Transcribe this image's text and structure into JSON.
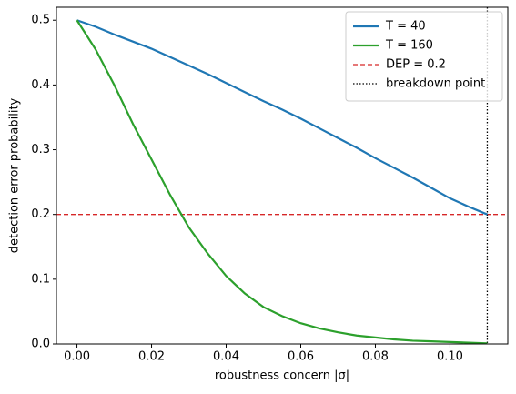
{
  "chart_data": {
    "type": "line",
    "xlabel": "robustness concern |σ|",
    "ylabel": "detection error probability",
    "x": [
      0,
      0.005,
      0.01,
      0.015,
      0.02,
      0.025,
      0.03,
      0.035,
      0.04,
      0.045,
      0.05,
      0.055,
      0.06,
      0.065,
      0.07,
      0.075,
      0.08,
      0.085,
      0.09,
      0.095,
      0.1,
      0.105,
      0.11
    ],
    "series": [
      {
        "name": "T = 40",
        "color": "#1f77b4",
        "values": [
          0.5,
          0.49,
          0.478,
          0.467,
          0.456,
          0.443,
          0.43,
          0.417,
          0.403,
          0.389,
          0.375,
          0.362,
          0.348,
          0.333,
          0.318,
          0.303,
          0.287,
          0.272,
          0.257,
          0.241,
          0.225,
          0.212,
          0.2
        ]
      },
      {
        "name": "T = 160",
        "color": "#2ca02c",
        "values": [
          0.5,
          0.455,
          0.4,
          0.34,
          0.285,
          0.23,
          0.18,
          0.14,
          0.105,
          0.078,
          0.057,
          0.043,
          0.032,
          0.024,
          0.018,
          0.013,
          0.01,
          0.007,
          0.005,
          0.004,
          0.003,
          0.002,
          0.001
        ]
      }
    ],
    "reference_lines": [
      {
        "name": "DEP = 0.2",
        "color": "#d62728",
        "orientation": "horizontal",
        "style": "dashed",
        "value": 0.2
      },
      {
        "name": "breakdown point",
        "color": "#000000",
        "orientation": "vertical",
        "style": "dotted",
        "value": 0.11
      }
    ],
    "xlim": [
      -0.0055,
      0.1155
    ],
    "ylim": [
      0,
      0.52
    ],
    "xticks": [
      {
        "value": 0,
        "label": "0.00"
      },
      0.02,
      0.04,
      0.06,
      0.08,
      {
        "value": 0.1,
        "label": "0.10"
      }
    ],
    "yticks": [
      {
        "value": 0,
        "label": "0.0"
      },
      0.1,
      0.2,
      0.3,
      0.4,
      0.5
    ],
    "legend": "upper-right"
  }
}
